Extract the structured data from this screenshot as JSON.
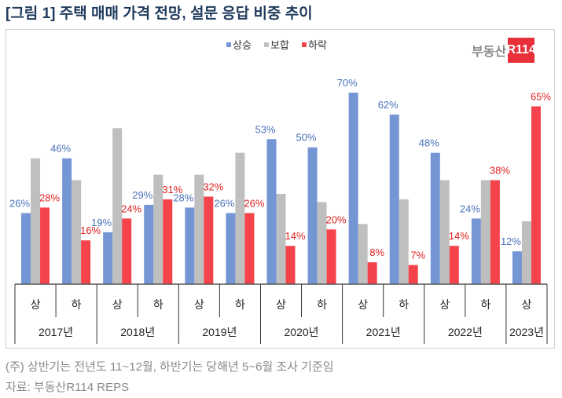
{
  "title": "[그림 1] 주택 매매 가격 전망, 설문 응답 비중 추이",
  "logo": {
    "text": "부동산",
    "box": "R114"
  },
  "notes": [
    "(주) 상반기는 전년도 11~12월, 하반기는 당해년 5~6월 조사 기준임",
    "자료: 부동산R114 REPS"
  ],
  "chart_data": {
    "type": "bar",
    "legend_position": "top",
    "categories": [
      "상",
      "하",
      "상",
      "하",
      "상",
      "하",
      "상",
      "하",
      "상",
      "하",
      "상",
      "하",
      "상"
    ],
    "years": [
      "2017년",
      "2018년",
      "2019년",
      "2020년",
      "2021년",
      "2022년",
      "2023년"
    ],
    "series": [
      {
        "name": "상승",
        "color": "#7496d4",
        "label_color": "#4a72b8",
        "show_labels": true,
        "values": [
          26,
          46,
          19,
          29,
          28,
          26,
          53,
          50,
          70,
          62,
          48,
          24,
          12
        ]
      },
      {
        "name": "보합",
        "color": "#bfbfbf",
        "show_labels": false,
        "values": [
          46,
          38,
          57,
          40,
          40,
          48,
          33,
          30,
          22,
          31,
          38,
          38,
          23
        ]
      },
      {
        "name": "하락",
        "color": "#f5434b",
        "label_color": "#e02020",
        "show_labels": true,
        "values": [
          28,
          16,
          24,
          31,
          32,
          26,
          14,
          20,
          8,
          7,
          14,
          38,
          65
        ]
      }
    ],
    "ylim": [
      0,
      75
    ],
    "grid": false
  }
}
